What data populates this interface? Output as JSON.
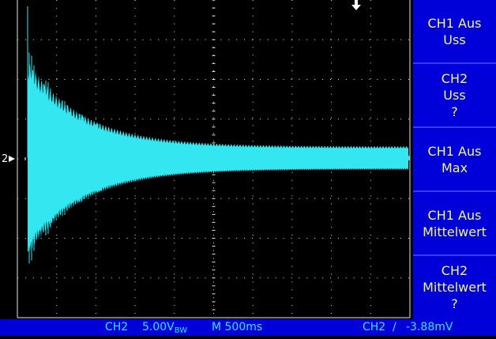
{
  "colors": {
    "trace": "#33e6f0",
    "grid": "#e8e8e8",
    "menu_bg": "#0000d8",
    "menu_text": "#f5f56a",
    "status_text": "#33e6f0"
  },
  "screen": {
    "channel_marker": "2",
    "trigger_marker_icon": "trigger-position-arrow-icon"
  },
  "menu": [
    {
      "line1": "CH1 Aus",
      "line2": "Uss",
      "line3": ""
    },
    {
      "line1": "CH2",
      "line2": "Uss",
      "line3": "?"
    },
    {
      "line1": "CH1 Aus",
      "line2": "Max",
      "line3": ""
    },
    {
      "line1": "CH1 Aus",
      "line2": "Mittelwert",
      "line3": ""
    },
    {
      "line1": "CH2",
      "line2": "Mittelwert",
      "line3": "?"
    }
  ],
  "status": {
    "channel": "CH2",
    "volts_div": "5.00V",
    "bw_symbol": "BW",
    "timebase": "M 500ms",
    "trigger_channel": "CH2",
    "trigger_slope": "/",
    "trigger_level": "-3.88mV"
  }
}
